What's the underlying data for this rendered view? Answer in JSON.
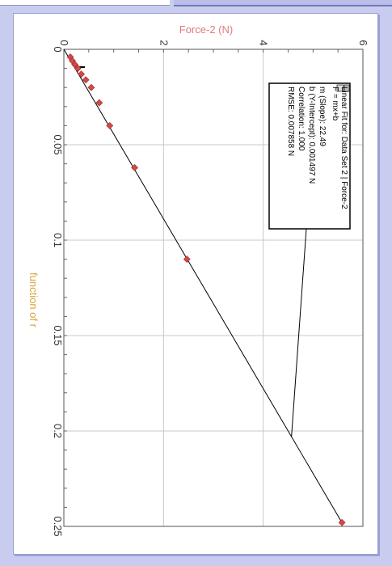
{
  "chart_data": {
    "type": "scatter",
    "orientation": "rotated-90",
    "xlabel": "function of r",
    "ylabel": "Force-2 (N)",
    "x_ticks": [
      "0",
      "0.05",
      "0.1",
      "0.15",
      "0.2",
      "0.25"
    ],
    "y_ticks": [
      "0",
      "2",
      "4",
      "6"
    ],
    "xlim": [
      0,
      0.25
    ],
    "ylim": [
      0,
      6
    ],
    "grid": true,
    "series": [
      {
        "points": [
          [
            0.004,
            0.13
          ],
          [
            0.006,
            0.17
          ],
          [
            0.008,
            0.22
          ],
          [
            0.01,
            0.28
          ],
          [
            0.013,
            0.35
          ],
          [
            0.016,
            0.44
          ],
          [
            0.02,
            0.55
          ],
          [
            0.028,
            0.71
          ],
          [
            0.04,
            0.92
          ],
          [
            0.062,
            1.42
          ],
          [
            0.11,
            2.47
          ],
          [
            0.248,
            5.58
          ]
        ],
        "color": "#d04a4a"
      }
    ],
    "fit": {
      "slope": 22.49,
      "intercept": 0.001497,
      "x_end": 0.248,
      "color": "#000000"
    },
    "fit_box": {
      "title": "Linear Fit for: Data Set 2 | Force-2",
      "equation": "F = mx+b",
      "slope_line": "m (Slope): 22.49",
      "intercept_line": "b (Y-Intercept): 0.001497 N",
      "correlation_line": "Correlation: 1.000",
      "rmse_line": "RMSE: 0.007858 N",
      "pointer_x": 0.203
    }
  }
}
